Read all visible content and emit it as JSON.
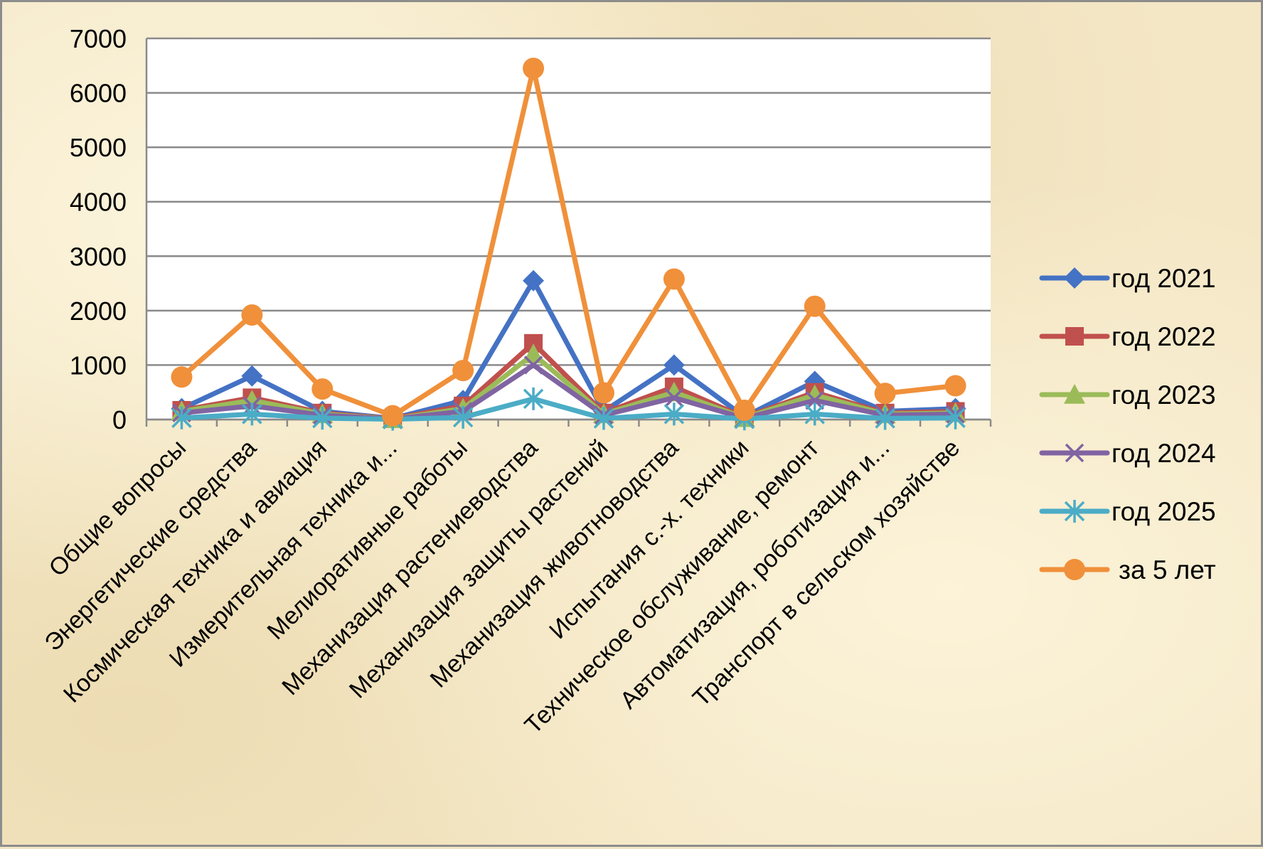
{
  "chart_data": {
    "type": "line",
    "title": "",
    "xlabel": "",
    "ylabel": "",
    "ylim": [
      0,
      7000
    ],
    "yticks": [
      0,
      1000,
      2000,
      3000,
      4000,
      5000,
      6000,
      7000
    ],
    "grid": true,
    "legend_position": "right",
    "categories": [
      "Общие вопросы",
      "Энергетические средства",
      "Космическая техника и авиация",
      "Измерительная техника и...",
      "Мелиоративные работы",
      "Механизация растениеводства",
      "Механизация защиты растений",
      "Механизация животноводства",
      "Испытания с.-х. техники",
      "Техническое обслуживание, ремонт",
      "Автоматизация, роботизация и...",
      "Транспорт в сельском хозяйстве"
    ],
    "series": [
      {
        "name": "год 2021",
        "color": "#4472c4",
        "marker": "diamond",
        "values": [
          200,
          800,
          150,
          20,
          350,
          2550,
          150,
          1000,
          50,
          700,
          150,
          200
        ]
      },
      {
        "name": "год 2022",
        "color": "#c0504d",
        "marker": "square",
        "values": [
          170,
          400,
          120,
          15,
          250,
          1400,
          120,
          600,
          40,
          500,
          120,
          150
        ]
      },
      {
        "name": "год 2023",
        "color": "#9bbb59",
        "marker": "triangle",
        "values": [
          150,
          350,
          100,
          10,
          200,
          1200,
          100,
          500,
          30,
          450,
          100,
          120
        ]
      },
      {
        "name": "год 2024",
        "color": "#8064a2",
        "marker": "x",
        "values": [
          120,
          250,
          80,
          10,
          150,
          1000,
          80,
          400,
          25,
          350,
          80,
          100
        ]
      },
      {
        "name": "год 2025",
        "color": "#4bacc6",
        "marker": "star",
        "values": [
          30,
          100,
          25,
          5,
          40,
          380,
          20,
          100,
          10,
          100,
          20,
          30
        ]
      },
      {
        "name": "за 5 лет",
        "color": "#f0903a",
        "marker": "circle",
        "values": [
          780,
          1920,
          560,
          70,
          900,
          6450,
          490,
          2580,
          170,
          2080,
          480,
          620
        ]
      }
    ]
  }
}
